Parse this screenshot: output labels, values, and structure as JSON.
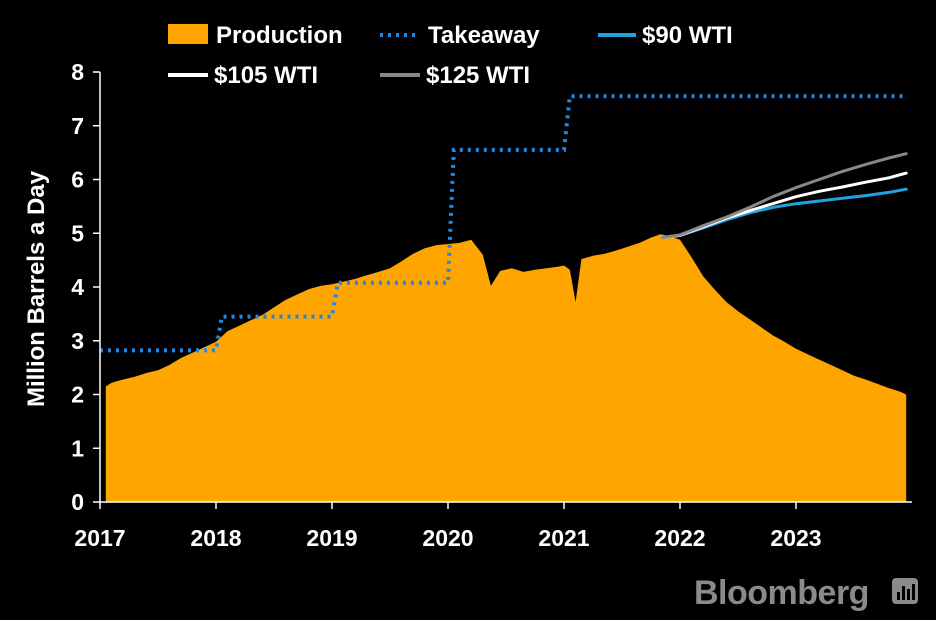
{
  "chart_data": {
    "type": "area",
    "title": "",
    "xlabel": "",
    "ylabel": "Million Barrels a Day",
    "ylim": [
      0,
      8
    ],
    "xlim": [
      2017,
      2024
    ],
    "y_ticks": [
      "0",
      "1",
      "2",
      "3",
      "4",
      "5",
      "6",
      "7",
      "8"
    ],
    "x_ticks": [
      "2017",
      "2018",
      "2019",
      "2020",
      "2021",
      "2022",
      "2023"
    ],
    "grid": false,
    "legend_position": "top",
    "source": "Bloomberg",
    "series": [
      {
        "name": "Production",
        "kind": "area",
        "color": "#FFA500",
        "x": [
          2017.05,
          2017.1,
          2017.2,
          2017.3,
          2017.4,
          2017.5,
          2017.6,
          2017.7,
          2017.8,
          2017.9,
          2018.0,
          2018.1,
          2018.2,
          2018.3,
          2018.4,
          2018.5,
          2018.6,
          2018.7,
          2018.8,
          2018.9,
          2019.0,
          2019.1,
          2019.2,
          2019.3,
          2019.4,
          2019.5,
          2019.6,
          2019.7,
          2019.8,
          2019.9,
          2020.0,
          2020.1,
          2020.2,
          2020.3,
          2020.37,
          2020.45,
          2020.55,
          2020.65,
          2020.75,
          2020.85,
          2020.95,
          2021.0,
          2021.05,
          2021.1,
          2021.15,
          2021.25,
          2021.35,
          2021.45,
          2021.55,
          2021.65,
          2021.75,
          2021.83,
          2021.9,
          2022.0,
          2022.1,
          2022.2,
          2022.3,
          2022.4,
          2022.5,
          2022.6,
          2022.7,
          2022.8,
          2022.9,
          2023.0,
          2023.1,
          2023.2,
          2023.3,
          2023.4,
          2023.5,
          2023.6,
          2023.7,
          2023.8,
          2023.9,
          2023.95
        ],
        "values": [
          2.15,
          2.22,
          2.28,
          2.33,
          2.4,
          2.45,
          2.55,
          2.68,
          2.78,
          2.88,
          2.98,
          3.18,
          3.28,
          3.38,
          3.48,
          3.62,
          3.76,
          3.86,
          3.96,
          4.02,
          4.05,
          4.1,
          4.15,
          4.22,
          4.28,
          4.35,
          4.48,
          4.62,
          4.72,
          4.78,
          4.8,
          4.82,
          4.88,
          4.6,
          4.02,
          4.3,
          4.35,
          4.28,
          4.32,
          4.35,
          4.38,
          4.4,
          4.32,
          3.72,
          4.52,
          4.58,
          4.62,
          4.68,
          4.75,
          4.82,
          4.92,
          4.98,
          4.95,
          4.88,
          4.55,
          4.2,
          3.95,
          3.72,
          3.55,
          3.4,
          3.25,
          3.1,
          2.98,
          2.85,
          2.75,
          2.65,
          2.55,
          2.45,
          2.35,
          2.28,
          2.2,
          2.12,
          2.05,
          2.0
        ]
      },
      {
        "name": "Takeaway",
        "kind": "step",
        "color": "#1E88E5",
        "x": [
          2017.0,
          2018.0,
          2018.05,
          2019.0,
          2019.05,
          2020.0,
          2020.05,
          2021.0,
          2021.05,
          2023.95
        ],
        "values": [
          2.82,
          2.82,
          3.45,
          3.45,
          4.08,
          4.08,
          6.55,
          6.55,
          7.55,
          7.55
        ]
      },
      {
        "name": "$90 WTI",
        "kind": "line",
        "color": "#1FA3DC",
        "x": [
          2021.85,
          2022.0,
          2022.2,
          2022.4,
          2022.6,
          2022.8,
          2023.0,
          2023.2,
          2023.4,
          2023.6,
          2023.8,
          2023.95
        ],
        "values": [
          4.92,
          4.96,
          5.1,
          5.25,
          5.38,
          5.48,
          5.55,
          5.6,
          5.65,
          5.7,
          5.76,
          5.82
        ]
      },
      {
        "name": "$105 WTI",
        "kind": "line",
        "color": "#FFFFFF",
        "x": [
          2021.85,
          2022.0,
          2022.2,
          2022.4,
          2022.6,
          2022.8,
          2023.0,
          2023.2,
          2023.4,
          2023.6,
          2023.8,
          2023.95
        ],
        "values": [
          4.92,
          4.96,
          5.12,
          5.28,
          5.42,
          5.55,
          5.68,
          5.78,
          5.86,
          5.95,
          6.03,
          6.12
        ]
      },
      {
        "name": "$125 WTI",
        "kind": "line",
        "color": "#888888",
        "x": [
          2021.85,
          2022.0,
          2022.2,
          2022.4,
          2022.6,
          2022.8,
          2023.0,
          2023.2,
          2023.4,
          2023.6,
          2023.8,
          2023.95
        ],
        "values": [
          4.92,
          4.97,
          5.14,
          5.3,
          5.48,
          5.68,
          5.85,
          6.0,
          6.15,
          6.28,
          6.4,
          6.48
        ]
      }
    ],
    "legend": [
      {
        "label": "Production",
        "swatch": "box",
        "color": "#FFA500"
      },
      {
        "label": "Takeaway",
        "swatch": "dotted",
        "color": "#1E88E5"
      },
      {
        "label": "$90 WTI",
        "swatch": "line",
        "color": "#1FA3DC"
      },
      {
        "label": "$105 WTI",
        "swatch": "line",
        "color": "#FFFFFF"
      },
      {
        "label": "$125 WTI",
        "swatch": "line",
        "color": "#888888"
      }
    ]
  }
}
